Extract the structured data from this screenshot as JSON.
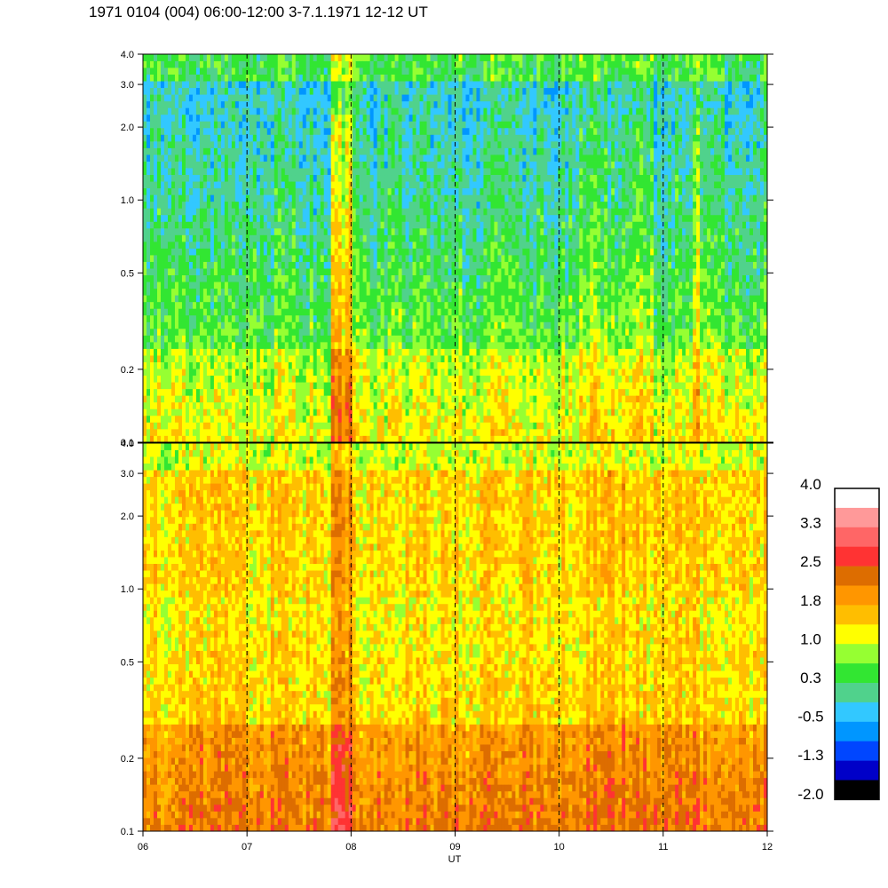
{
  "header": {
    "title": "1971 0104 (004) 06:00-12:00 3-7.1.1971  12-12 UT"
  },
  "chart_data": [
    {
      "type": "heatmap",
      "panel": "upper",
      "title": "",
      "xlabel": "",
      "ylabel": "",
      "y_scale": "log",
      "ylim": [
        0.1,
        4.0
      ],
      "xlim": [
        "06",
        "12"
      ],
      "y_ticks": [
        "0.1",
        "0.2",
        "0.5",
        "1.0",
        "2.0",
        "3.0",
        "4.0"
      ],
      "x_ticks": [],
      "hour_markers": [
        "07",
        "08",
        "09",
        "10",
        "11"
      ],
      "dominant_levels": {
        "0.1-0.3": "0.9 to 1.6",
        "0.3-1.0": "0.0 to 0.8",
        "1.0-4.0": "-0.8 to 0.3"
      },
      "notable_bursts": [
        "07:50-08:00",
        "11:17-11:22"
      ]
    },
    {
      "type": "heatmap",
      "panel": "lower",
      "title": "",
      "xlabel": "UT",
      "ylabel": "",
      "y_scale": "log",
      "ylim": [
        0.1,
        4.0
      ],
      "xlim": [
        "06",
        "12"
      ],
      "y_ticks": [
        "0.1",
        "0.2",
        "0.5",
        "1.0",
        "2.0",
        "3.0",
        "4.0"
      ],
      "x_ticks": [
        "06",
        "07",
        "08",
        "09",
        "10",
        "11",
        "12"
      ],
      "hour_markers": [
        "07",
        "08",
        "09",
        "10",
        "11"
      ],
      "dominant_levels": {
        "0.1-0.3": "1.8 to 2.8",
        "0.3-1.0": "1.0 to 1.9",
        "1.0-4.0": "1.1 to 1.8"
      },
      "notable_bursts": [
        "07:50-08:00",
        "11:17-11:22"
      ]
    }
  ],
  "colorbar": {
    "labels": [
      "4.0",
      "3.3",
      "2.5",
      "1.8",
      "1.0",
      "0.3",
      "-0.5",
      "-1.3",
      "-2.0"
    ],
    "colors": [
      "#ffffff",
      "#ff9999",
      "#ff6666",
      "#ff3333",
      "#dd6d00",
      "#ff9600",
      "#ffbe00",
      "#ffff00",
      "#96ff32",
      "#32e632",
      "#50d28c",
      "#32c8ff",
      "#0096ff",
      "#0046ff",
      "#0000c8",
      "#000000"
    ]
  }
}
